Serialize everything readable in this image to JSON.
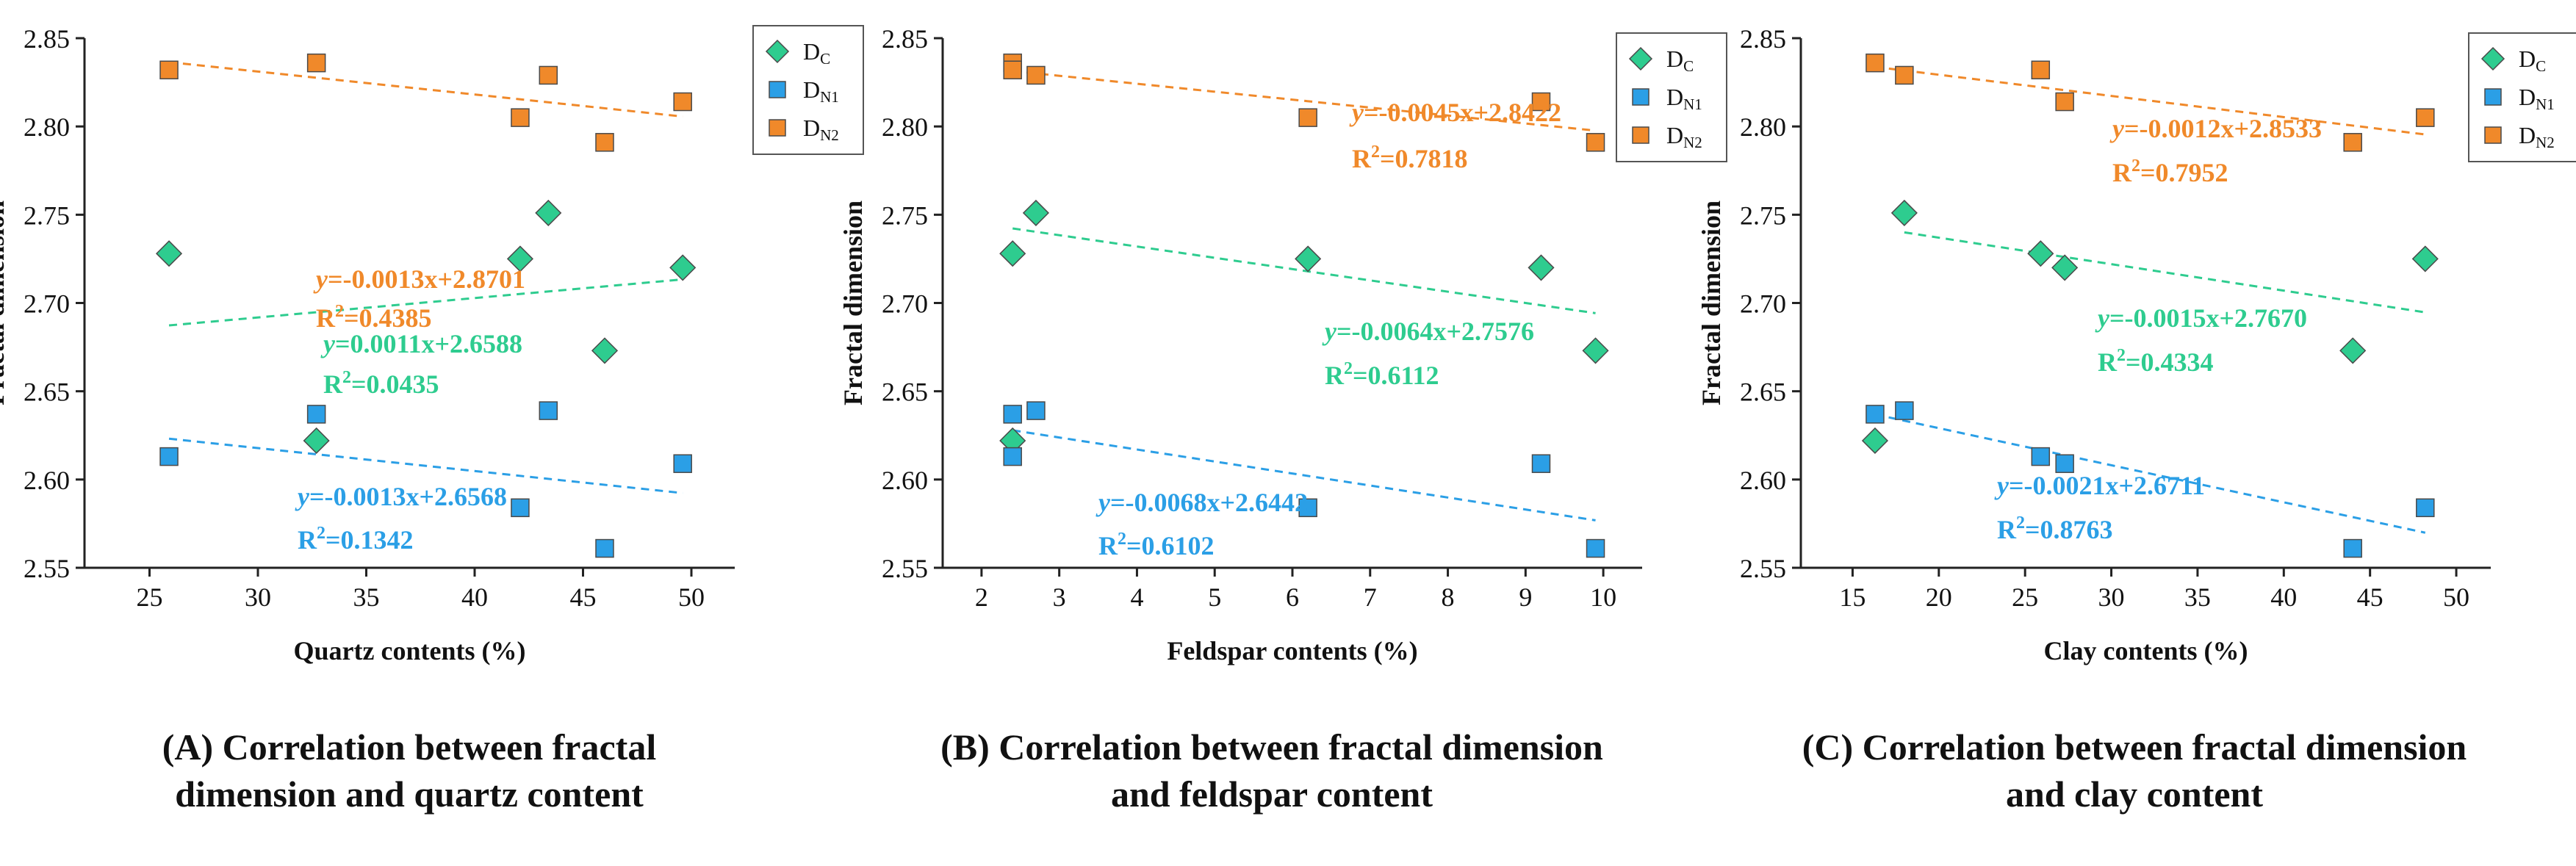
{
  "colors": {
    "dc": "#2ecc8f",
    "dn1": "#2b9fe6",
    "dn2": "#f0892a",
    "axis": "#222222"
  },
  "chart_data": [
    {
      "type": "scatter",
      "panel": "A",
      "title": "",
      "xlabel": "Quartz contents (%)",
      "ylabel": "Fractal dimension",
      "xlim": [
        22,
        52
      ],
      "ylim": [
        2.55,
        2.85
      ],
      "xticks": [
        25,
        30,
        35,
        40,
        45,
        50
      ],
      "yticks": [
        2.55,
        2.6,
        2.65,
        2.7,
        2.75,
        2.8,
        2.85
      ],
      "grid": false,
      "legend": {
        "position": "top-right",
        "entries": [
          {
            "series": "dc",
            "base": "D",
            "sub": "C"
          },
          {
            "series": "dn1",
            "base": "D",
            "sub": "N1"
          },
          {
            "series": "dn2",
            "base": "D",
            "sub": "N2"
          }
        ]
      },
      "series": [
        {
          "key": "dc",
          "name": "DC",
          "marker": "diamond",
          "points": [
            [
              25.9,
              2.728
            ],
            [
              32.7,
              2.622
            ],
            [
              42.1,
              2.725
            ],
            [
              43.4,
              2.751
            ],
            [
              46.0,
              2.673
            ],
            [
              49.6,
              2.72
            ]
          ],
          "fit": {
            "slope": 0.0011,
            "intercept": 2.6588,
            "x_range": [
              25.9,
              49.6
            ]
          },
          "equation": {
            "prefix": "y",
            "text": "=0.0011x+2.6588",
            "r2_label": "R",
            "r2_sup": "2",
            "r2_value": "=0.0435"
          }
        },
        {
          "key": "dn1",
          "name": "DN1",
          "marker": "square",
          "points": [
            [
              25.9,
              2.613
            ],
            [
              32.7,
              2.637
            ],
            [
              42.1,
              2.584
            ],
            [
              43.4,
              2.639
            ],
            [
              46.0,
              2.561
            ],
            [
              49.6,
              2.609
            ]
          ],
          "fit": {
            "slope": -0.0013,
            "intercept": 2.6568,
            "x_range": [
              25.9,
              49.6
            ]
          },
          "equation": {
            "prefix": "y",
            "text": "=-0.0013x+2.6568",
            "r2_label": "R",
            "r2_sup": "2",
            "r2_value": "=0.1342"
          }
        },
        {
          "key": "dn2",
          "name": "DN2",
          "marker": "square",
          "points": [
            [
              25.9,
              2.832
            ],
            [
              32.7,
              2.836
            ],
            [
              42.1,
              2.805
            ],
            [
              43.4,
              2.829
            ],
            [
              46.0,
              2.791
            ],
            [
              49.6,
              2.814
            ]
          ],
          "fit": {
            "slope": -0.0013,
            "intercept": 2.8701,
            "x_range": [
              25.9,
              49.6
            ]
          },
          "equation": {
            "prefix": "y",
            "text": "=-0.0013x+2.8701",
            "r2_label": "R",
            "r2_sup": "2",
            "r2_value": "=0.4385"
          }
        }
      ]
    },
    {
      "type": "scatter",
      "panel": "B",
      "title": "",
      "xlabel": "Feldspar contents (%)",
      "ylabel": "Fractal dimension",
      "xlim": [
        1.5,
        10.5
      ],
      "ylim": [
        2.55,
        2.85
      ],
      "xticks": [
        2,
        3,
        4,
        5,
        6,
        7,
        8,
        9,
        10
      ],
      "yticks": [
        2.55,
        2.6,
        2.65,
        2.7,
        2.75,
        2.8,
        2.85
      ],
      "grid": false,
      "legend": {
        "position": "top-right",
        "entries": [
          {
            "series": "dc",
            "base": "D",
            "sub": "C"
          },
          {
            "series": "dn1",
            "base": "D",
            "sub": "N1"
          },
          {
            "series": "dn2",
            "base": "D",
            "sub": "N2"
          }
        ]
      },
      "series": [
        {
          "key": "dc",
          "name": "DC",
          "marker": "diamond",
          "points": [
            [
              2.4,
              2.728
            ],
            [
              2.4,
              2.622
            ],
            [
              2.7,
              2.751
            ],
            [
              6.2,
              2.725
            ],
            [
              9.2,
              2.72
            ],
            [
              9.9,
              2.673
            ]
          ],
          "fit": {
            "slope": -0.0064,
            "intercept": 2.7576,
            "x_range": [
              2.4,
              9.9
            ]
          },
          "equation": {
            "prefix": "y",
            "text": "=-0.0064x+2.7576",
            "r2_label": "R",
            "r2_sup": "2",
            "r2_value": "=0.6112"
          }
        },
        {
          "key": "dn1",
          "name": "DN1",
          "marker": "square",
          "points": [
            [
              2.4,
              2.613
            ],
            [
              2.4,
              2.637
            ],
            [
              2.7,
              2.639
            ],
            [
              6.2,
              2.584
            ],
            [
              9.2,
              2.609
            ],
            [
              9.9,
              2.561
            ]
          ],
          "fit": {
            "slope": -0.0068,
            "intercept": 2.6442,
            "x_range": [
              2.4,
              9.9
            ]
          },
          "equation": {
            "prefix": "y",
            "text": "=-0.0068x+2.6442",
            "r2_label": "R",
            "r2_sup": "2",
            "r2_value": "=0.6102"
          }
        },
        {
          "key": "dn2",
          "name": "DN2",
          "marker": "square",
          "points": [
            [
              2.4,
              2.836
            ],
            [
              2.4,
              2.832
            ],
            [
              2.7,
              2.829
            ],
            [
              6.2,
              2.805
            ],
            [
              9.2,
              2.814
            ],
            [
              9.9,
              2.791
            ]
          ],
          "fit": {
            "slope": -0.0045,
            "intercept": 2.8422,
            "x_range": [
              2.4,
              9.9
            ]
          },
          "equation": {
            "prefix": "y",
            "text": "=-0.0045x+2.8422",
            "r2_label": "R",
            "r2_sup": "2",
            "r2_value": "=0.7818"
          }
        }
      ]
    },
    {
      "type": "scatter",
      "panel": "C",
      "title": "",
      "xlabel": "Clay contents (%)",
      "ylabel": "Fractal dimension",
      "xlim": [
        12,
        52
      ],
      "ylim": [
        2.55,
        2.85
      ],
      "xticks": [
        15,
        20,
        25,
        30,
        35,
        40,
        45,
        50
      ],
      "yticks": [
        2.55,
        2.6,
        2.65,
        2.7,
        2.75,
        2.8,
        2.85
      ],
      "grid": false,
      "legend": {
        "position": "top-right",
        "entries": [
          {
            "series": "dc",
            "base": "D",
            "sub": "C"
          },
          {
            "series": "dn1",
            "base": "D",
            "sub": "N1"
          },
          {
            "series": "dn2",
            "base": "D",
            "sub": "N2"
          }
        ]
      },
      "series": [
        {
          "key": "dc",
          "name": "DC",
          "marker": "diamond",
          "points": [
            [
              16.3,
              2.622
            ],
            [
              18.0,
              2.751
            ],
            [
              25.9,
              2.728
            ],
            [
              27.3,
              2.72
            ],
            [
              44.0,
              2.673
            ],
            [
              48.2,
              2.725
            ]
          ],
          "fit": {
            "slope": -0.0015,
            "intercept": 2.767,
            "x_range": [
              18.0,
              48.2
            ]
          },
          "equation": {
            "prefix": "y",
            "text": "=-0.0015x+2.7670",
            "r2_label": "R",
            "r2_sup": "2",
            "r2_value": "=0.4334"
          }
        },
        {
          "key": "dn1",
          "name": "DN1",
          "marker": "square",
          "points": [
            [
              16.3,
              2.637
            ],
            [
              18.0,
              2.639
            ],
            [
              25.9,
              2.613
            ],
            [
              27.3,
              2.609
            ],
            [
              44.0,
              2.561
            ],
            [
              48.2,
              2.584
            ]
          ],
          "fit": {
            "slope": -0.0021,
            "intercept": 2.6711,
            "x_range": [
              16.3,
              48.2
            ]
          },
          "equation": {
            "prefix": "y",
            "text": "=-0.0021x+2.6711",
            "r2_label": "R",
            "r2_sup": "2",
            "r2_value": "=0.8763"
          }
        },
        {
          "key": "dn2",
          "name": "DN2",
          "marker": "square",
          "points": [
            [
              16.3,
              2.836
            ],
            [
              18.0,
              2.829
            ],
            [
              25.9,
              2.832
            ],
            [
              27.3,
              2.814
            ],
            [
              44.0,
              2.791
            ],
            [
              48.2,
              2.805
            ]
          ],
          "fit": {
            "slope": -0.0012,
            "intercept": 2.8533,
            "x_range": [
              16.3,
              48.2
            ]
          },
          "equation": {
            "prefix": "y",
            "text": "=-0.0012x+2.8533",
            "r2_label": "R",
            "r2_sup": "2",
            "r2_value": "=0.7952"
          }
        }
      ]
    }
  ],
  "captions": [
    {
      "line1": "(A) Correlation between fractal",
      "line2": "dimension and quartz content"
    },
    {
      "line1": "(B) Correlation between fractal dimension",
      "line2": "and feldspar content"
    },
    {
      "line1": "(C) Correlation between fractal dimension",
      "line2": "and clay content"
    }
  ]
}
